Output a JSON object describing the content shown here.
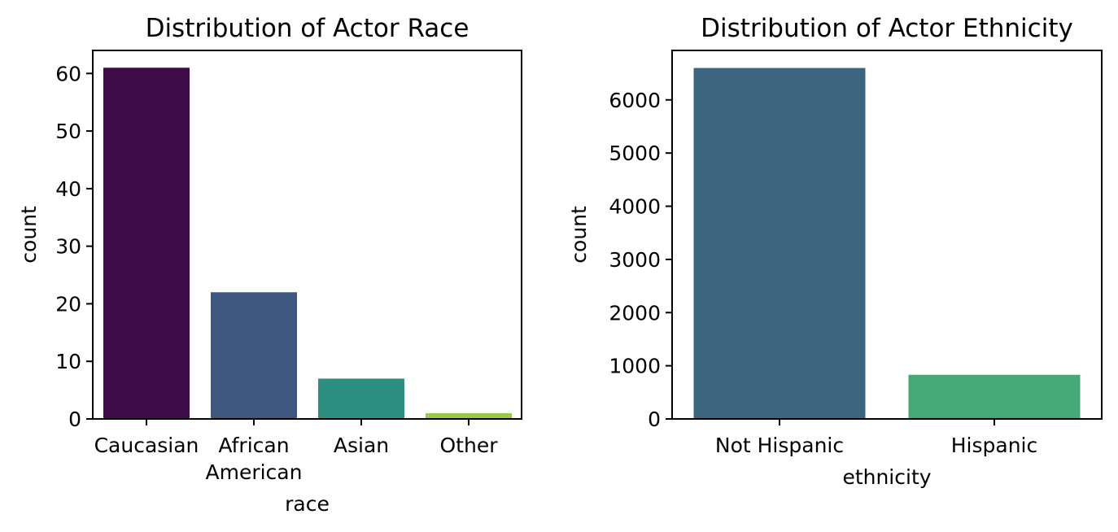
{
  "chart_data": [
    {
      "type": "bar",
      "title": "Distribution of Actor Race",
      "xlabel": "race",
      "ylabel": "count",
      "categories": [
        "Caucasian",
        "African\nAmerican",
        "Asian",
        "Other"
      ],
      "values": [
        61,
        22,
        7,
        1
      ],
      "colors": [
        "#3e0d47",
        "#3e5880",
        "#2e8e7f",
        "#97cb47"
      ],
      "ylim": [
        0,
        64
      ],
      "yticks": [
        0,
        10,
        20,
        30,
        40,
        50,
        60
      ],
      "grid": false,
      "legend": "none"
    },
    {
      "type": "bar",
      "title": "Distribution of Actor Ethnicity",
      "xlabel": "ethnicity",
      "ylabel": "count",
      "categories": [
        "Not Hispanic",
        "Hispanic"
      ],
      "values": [
        6600,
        830
      ],
      "colors": [
        "#3e6580",
        "#45a878"
      ],
      "ylim": [
        0,
        6930
      ],
      "yticks": [
        0,
        1000,
        2000,
        3000,
        4000,
        5000,
        6000
      ],
      "grid": false,
      "legend": "none"
    }
  ]
}
